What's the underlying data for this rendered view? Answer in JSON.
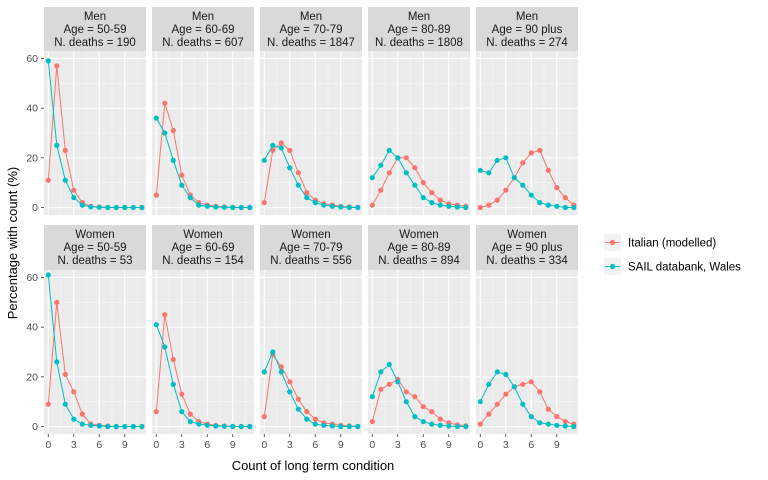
{
  "chart_data": {
    "type": "line",
    "xlabel": "Count of long term condition",
    "ylabel": "Percentage with count (%)",
    "x": [
      0,
      1,
      2,
      3,
      4,
      5,
      6,
      7,
      8,
      9,
      10,
      11
    ],
    "x_ticks": [
      0,
      3,
      6,
      9
    ],
    "y_ticks": [
      0,
      20,
      40,
      60
    ],
    "xlim": [
      -0.5,
      11.5
    ],
    "ylim": [
      -3,
      63
    ],
    "grid": true,
    "legend_position": "right",
    "legend": [
      {
        "name": "Italian (modelled)",
        "color": "#F8766D"
      },
      {
        "name": "SAIL databank, Wales",
        "color": "#00BFC4"
      }
    ],
    "panels": [
      {
        "sex": "Men",
        "age": "Age = 50-59",
        "deaths": "N. deaths = 190",
        "italian": [
          11,
          57,
          23,
          7,
          2,
          0.5,
          0.2,
          0.1,
          0,
          0,
          0,
          0
        ],
        "sail": [
          59,
          25,
          11,
          4,
          1,
          0.3,
          0.1,
          0,
          0,
          0,
          0,
          0
        ]
      },
      {
        "sex": "Men",
        "age": "Age = 60-69",
        "deaths": "N. deaths = 607",
        "italian": [
          5,
          42,
          31,
          13,
          5,
          2,
          1,
          0.5,
          0.2,
          0.1,
          0,
          0
        ],
        "sail": [
          36,
          30,
          19,
          9,
          4,
          1,
          0.5,
          0.2,
          0.1,
          0,
          0,
          0
        ]
      },
      {
        "sex": "Men",
        "age": "Age = 70-79",
        "deaths": "N. deaths = 1847",
        "italian": [
          2,
          23,
          26,
          23,
          14,
          6,
          3,
          1.5,
          1,
          0.5,
          0.2,
          0.1
        ],
        "sail": [
          19,
          25,
          24,
          16,
          9,
          4,
          2,
          1,
          0.5,
          0.2,
          0,
          0
        ]
      },
      {
        "sex": "Men",
        "age": "Age = 80-89",
        "deaths": "N. deaths = 1808",
        "italian": [
          1,
          7,
          14,
          20,
          20,
          16,
          10,
          6,
          3,
          1.5,
          1,
          0.5
        ],
        "sail": [
          12,
          17,
          23,
          20,
          14,
          9,
          4,
          2,
          1,
          0.5,
          0.2,
          0
        ]
      },
      {
        "sex": "Men",
        "age": "Age = 90 plus",
        "deaths": "N. deaths = 274",
        "italian": [
          0,
          1,
          3,
          7,
          12,
          18,
          22,
          23,
          15,
          8,
          4,
          1
        ],
        "sail": [
          15,
          14,
          19,
          20,
          12,
          9,
          5,
          2,
          1,
          0.5,
          0,
          0
        ]
      },
      {
        "sex": "Women",
        "age": "Age = 50-59",
        "deaths": "N. deaths = 53",
        "italian": [
          9,
          50,
          21,
          14,
          5,
          1,
          0.5,
          0.2,
          0,
          0,
          0,
          0
        ],
        "sail": [
          61,
          26,
          9,
          3,
          1,
          0.5,
          0.2,
          0,
          0,
          0,
          0,
          0
        ]
      },
      {
        "sex": "Women",
        "age": "Age = 60-69",
        "deaths": "N. deaths = 154",
        "italian": [
          6,
          45,
          27,
          13,
          5,
          2,
          1,
          0.5,
          0.2,
          0.1,
          0,
          0
        ],
        "sail": [
          41,
          32,
          17,
          6,
          2,
          1,
          0.5,
          0.2,
          0.1,
          0,
          0,
          0
        ]
      },
      {
        "sex": "Women",
        "age": "Age = 70-79",
        "deaths": "N. deaths = 556",
        "italian": [
          4,
          29,
          24,
          18,
          11,
          6,
          3,
          1.5,
          1,
          0.5,
          0.2,
          0.1
        ],
        "sail": [
          22,
          30,
          22,
          14,
          7,
          3,
          1,
          0.5,
          0.2,
          0,
          0,
          0
        ]
      },
      {
        "sex": "Women",
        "age": "Age = 80-89",
        "deaths": "N. deaths = 894",
        "italian": [
          2,
          15,
          17,
          19,
          14,
          12,
          8,
          6,
          3,
          1.5,
          0.7,
          0.3
        ],
        "sail": [
          12,
          22,
          25,
          18,
          10,
          4,
          2,
          1,
          0.5,
          0.2,
          0,
          0
        ]
      },
      {
        "sex": "Women",
        "age": "Age = 90 plus",
        "deaths": "N. deaths = 334",
        "italian": [
          1,
          5,
          9,
          13,
          16,
          17,
          18,
          14,
          7,
          4,
          2,
          1
        ],
        "sail": [
          10,
          17,
          22,
          21,
          16,
          9,
          4,
          1.5,
          1,
          0.5,
          0.2,
          0
        ]
      }
    ]
  }
}
